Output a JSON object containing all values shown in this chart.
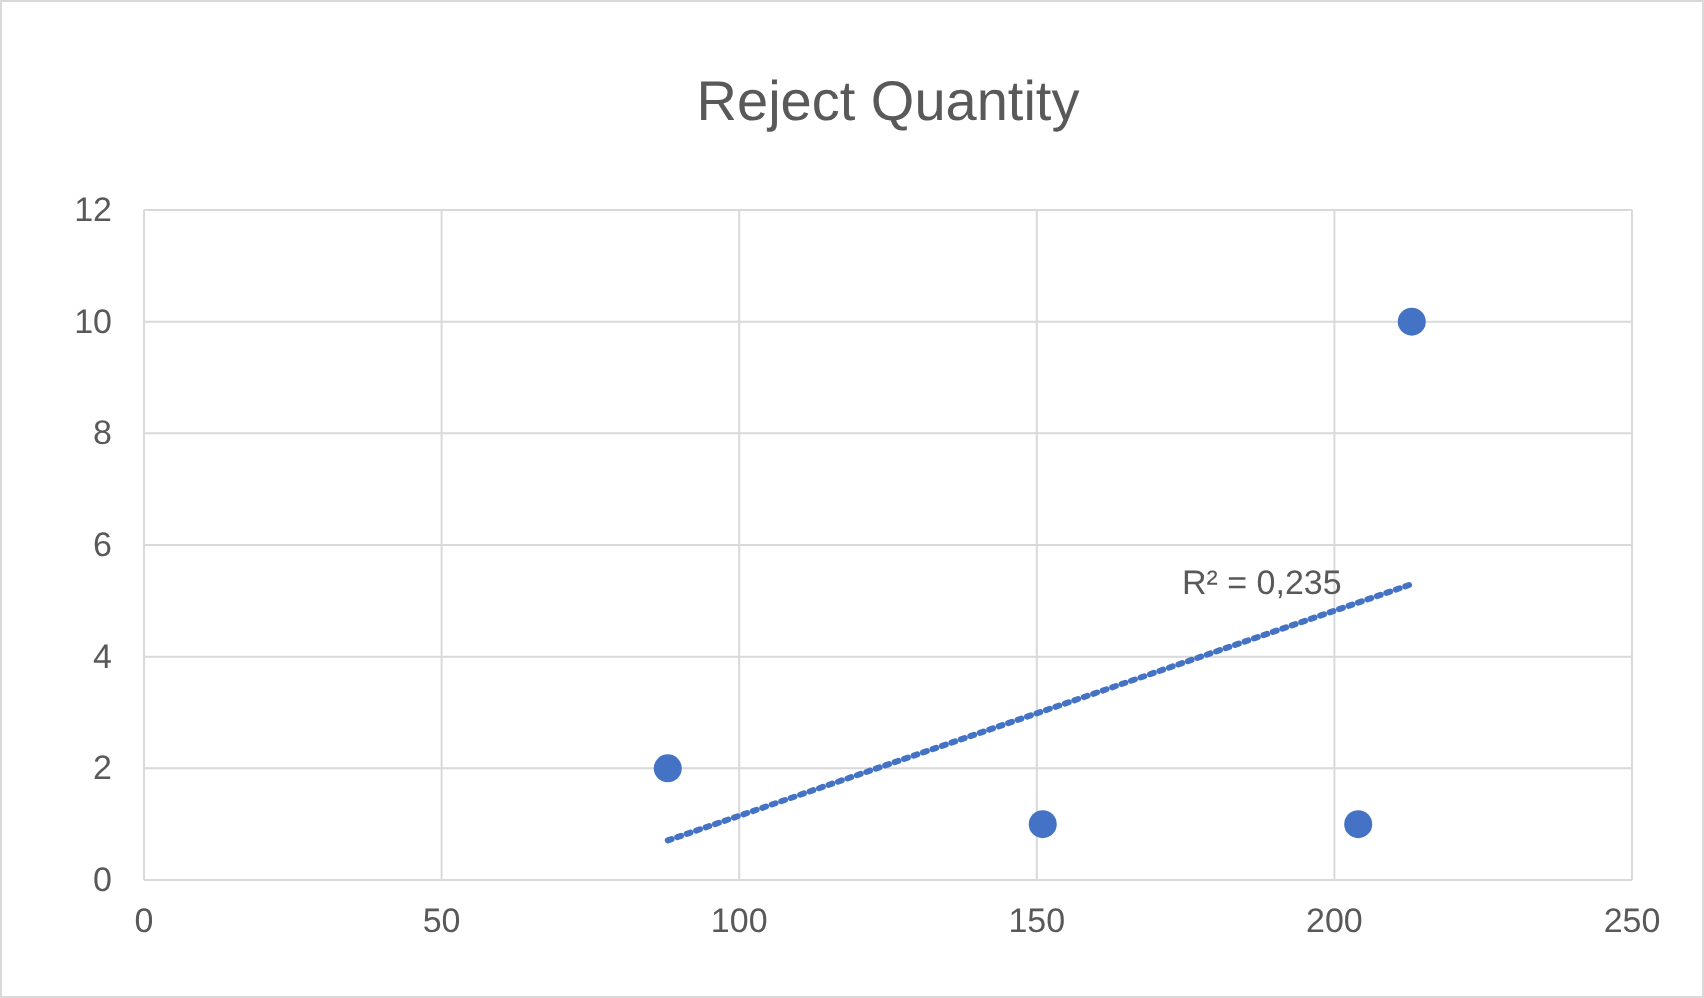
{
  "chart_data": {
    "type": "scatter",
    "title": "Reject Quantity",
    "series": [
      {
        "type": "scatter",
        "color": "#4472c4",
        "x": [
          88,
          151,
          204,
          213
        ],
        "values": [
          2,
          1,
          1,
          10
        ],
        "marker": "circle"
      },
      {
        "type": "line",
        "color": "#4472c4",
        "x": [
          88,
          213
        ],
        "values": [
          0.71,
          5.3
        ],
        "line_style": "dotted"
      }
    ],
    "annotations": [
      "R² = 0,235"
    ],
    "xlim": [
      0,
      250
    ],
    "xticks": [
      0,
      50,
      100,
      150,
      200,
      250
    ],
    "ylim": [
      0,
      12
    ],
    "yticks": [
      0,
      2,
      4,
      6,
      8,
      10,
      12
    ],
    "grid": true
  }
}
